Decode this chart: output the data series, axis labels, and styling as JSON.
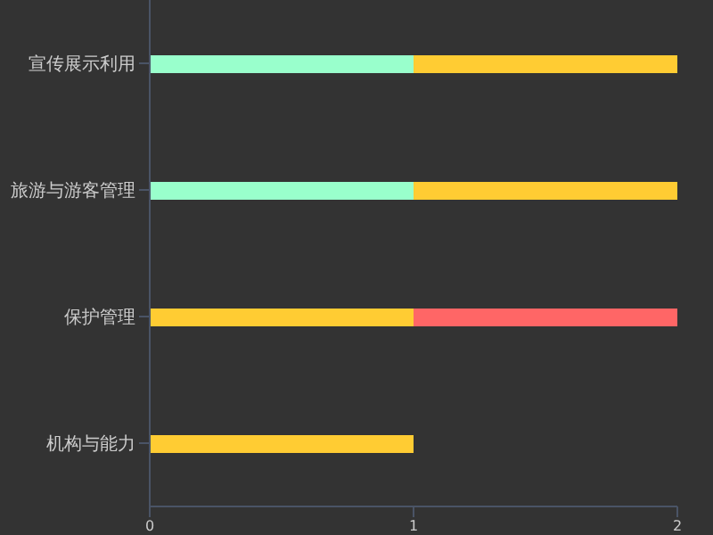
{
  "chart_data": {
    "type": "bar",
    "orientation": "horizontal",
    "stacked": true,
    "categories": [
      "宣传展示利用",
      "旅游与游客管理",
      "保护管理",
      "机构与能力"
    ],
    "series": [
      {
        "color": "#99ffcc",
        "values": [
          1,
          1,
          null,
          null
        ]
      },
      {
        "color": "#ffcc33",
        "values": [
          1,
          1,
          1,
          1
        ]
      },
      {
        "color": "#ff6666",
        "values": [
          null,
          null,
          1,
          null
        ]
      }
    ],
    "xlim": [
      0,
      2
    ],
    "xticks": [
      0,
      1,
      2
    ],
    "grid": false,
    "legend": false
  }
}
